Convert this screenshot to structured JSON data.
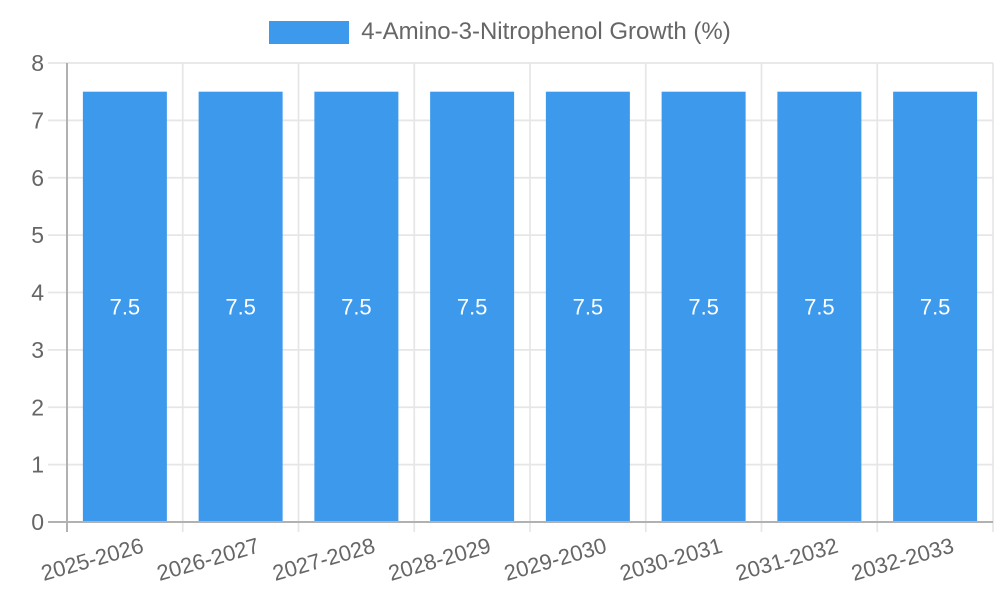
{
  "legend": {
    "label": "4-Amino-3-Nitrophenol Growth (%)"
  },
  "chart_data": {
    "type": "bar",
    "title": "4-Amino-3-Nitrophenol Growth (%)",
    "categories": [
      "2025-2026",
      "2026-2027",
      "2027-2028",
      "2028-2029",
      "2029-2030",
      "2030-2031",
      "2031-2032",
      "2032-2033"
    ],
    "values": [
      7.5,
      7.5,
      7.5,
      7.5,
      7.5,
      7.5,
      7.5,
      7.5
    ],
    "value_labels": [
      "7.5",
      "7.5",
      "7.5",
      "7.5",
      "7.5",
      "7.5",
      "7.5",
      "7.5"
    ],
    "xlabel": "",
    "ylabel": "",
    "ylim": [
      0,
      8
    ],
    "yticks": [
      0,
      1,
      2,
      3,
      4,
      5,
      6,
      7,
      8
    ],
    "grid": true,
    "legend_position": "top",
    "x_label_rotation_deg": -16,
    "bar_color": "#3C99EC",
    "value_label_color": "#ffffff",
    "axis_color": "#b1b1b1",
    "grid_color": "#e6e6e6",
    "tick_label_color": "#666666",
    "legend_text_color": "#666666"
  }
}
